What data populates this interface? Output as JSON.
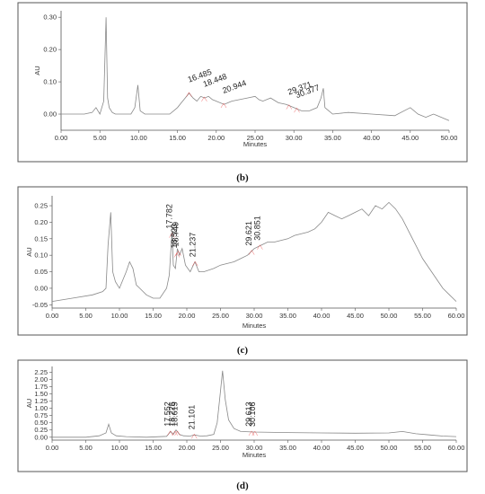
{
  "chart_data": [
    {
      "type": "line",
      "panel_label": "(b)",
      "xlabel": "Minutes",
      "ylabel": "AU",
      "xlim": [
        0,
        50
      ],
      "ylim": [
        -0.05,
        0.32
      ],
      "x_ticks": [
        "0.00",
        "5.00",
        "10.00",
        "15.00",
        "20.00",
        "25.00",
        "30.00",
        "35.00",
        "40.00",
        "45.00",
        "50.00"
      ],
      "y_ticks": [
        "0.00",
        "0.10",
        "0.20",
        "0.30"
      ],
      "series": [
        {
          "x": [
            0,
            3,
            4,
            4.5,
            5,
            5.5,
            5.8,
            6,
            6.2,
            6.6,
            7,
            8,
            9,
            9.5,
            9.9,
            10.2,
            10.8,
            12,
            14,
            15,
            15.5,
            16,
            16.5,
            17,
            17.5,
            18,
            18.5,
            19,
            19.5,
            20,
            21,
            22,
            23,
            24,
            25,
            25.5,
            26,
            27,
            28,
            29,
            29.5,
            30,
            30.5,
            31,
            32,
            33,
            33.5,
            33.8,
            34,
            34.5,
            35,
            37,
            40,
            43,
            45,
            46,
            47,
            48,
            49,
            50
          ],
          "y": [
            0.0,
            0.0,
            0.005,
            0.02,
            0.0,
            0.04,
            0.3,
            0.05,
            0.02,
            0.005,
            0.0,
            0.0,
            0.0,
            0.02,
            0.09,
            0.01,
            0.0,
            0.0,
            0.0,
            0.02,
            0.035,
            0.05,
            0.065,
            0.05,
            0.04,
            0.055,
            0.05,
            0.055,
            0.045,
            0.04,
            0.03,
            0.04,
            0.045,
            0.05,
            0.055,
            0.045,
            0.04,
            0.05,
            0.035,
            0.03,
            0.025,
            0.02,
            0.015,
            0.01,
            0.01,
            0.02,
            0.05,
            0.08,
            0.02,
            0.01,
            0.0,
            0.005,
            0.0,
            -0.005,
            0.02,
            0.0,
            -0.01,
            0.0,
            -0.01,
            -0.02
          ]
        }
      ],
      "peak_labels": [
        {
          "x": 16.485,
          "text": "16.485"
        },
        {
          "x": 18.448,
          "text": "18.448"
        },
        {
          "x": 20.944,
          "text": "20.944"
        },
        {
          "x": 29.371,
          "text": "29.371"
        },
        {
          "x": 30.377,
          "text": "30.377"
        }
      ]
    },
    {
      "type": "line",
      "panel_label": "(c)",
      "xlabel": "Minutes",
      "ylabel": "AU",
      "xlim": [
        0,
        60
      ],
      "ylim": [
        -0.06,
        0.28
      ],
      "x_ticks": [
        "0.00",
        "5.00",
        "10.00",
        "15.00",
        "20.00",
        "25.00",
        "30.00",
        "35.00",
        "40.00",
        "45.00",
        "50.00",
        "55.00",
        "60.00"
      ],
      "y_ticks": [
        "-0.05",
        "0.00",
        "0.05",
        "0.10",
        "0.15",
        "0.20",
        "0.25"
      ],
      "series": [
        {
          "x": [
            0,
            3,
            6,
            7.5,
            8,
            8.3,
            8.7,
            9,
            9.4,
            10,
            11,
            11.5,
            12,
            12.5,
            13,
            14,
            15,
            16,
            17,
            17.4,
            17.8,
            18,
            18.3,
            18.6,
            18.9,
            19.3,
            19.8,
            20.5,
            21.2,
            21.8,
            22.5,
            24,
            25,
            26,
            27,
            28,
            29,
            30,
            31,
            32,
            33,
            34,
            35,
            36,
            38,
            39,
            40,
            41,
            42,
            43,
            44,
            45,
            46,
            47,
            48,
            49,
            50,
            51,
            52,
            53,
            54,
            55,
            56,
            57,
            58,
            59,
            60
          ],
          "y": [
            -0.04,
            -0.03,
            -0.02,
            -0.01,
            0.0,
            0.13,
            0.23,
            0.05,
            0.02,
            0.0,
            0.05,
            0.08,
            0.06,
            0.01,
            0.0,
            -0.02,
            -0.03,
            -0.03,
            0.0,
            0.04,
            0.17,
            0.07,
            0.06,
            0.12,
            0.1,
            0.12,
            0.07,
            0.05,
            0.08,
            0.05,
            0.05,
            0.06,
            0.07,
            0.075,
            0.08,
            0.09,
            0.1,
            0.12,
            0.13,
            0.14,
            0.14,
            0.145,
            0.15,
            0.16,
            0.17,
            0.18,
            0.2,
            0.23,
            0.22,
            0.21,
            0.22,
            0.23,
            0.24,
            0.22,
            0.25,
            0.24,
            0.26,
            0.24,
            0.21,
            0.17,
            0.13,
            0.09,
            0.06,
            0.03,
            0.0,
            -0.02,
            -0.04
          ]
        }
      ],
      "peak_labels": [
        {
          "x": 17.782,
          "text": "17.782"
        },
        {
          "x": 18.523,
          "text": "18.523"
        },
        {
          "x": 18.749,
          "text": "18.749"
        },
        {
          "x": 21.237,
          "text": "21.237"
        },
        {
          "x": 29.621,
          "text": "29.621"
        },
        {
          "x": 30.851,
          "text": "30.851"
        }
      ]
    },
    {
      "type": "line",
      "panel_label": "(d)",
      "xlabel": "Minutes",
      "ylabel": "AU",
      "xlim": [
        0,
        60
      ],
      "ylim": [
        -0.1,
        2.45
      ],
      "x_ticks": [
        "0.00",
        "5.00",
        "10.00",
        "15.00",
        "20.00",
        "25.00",
        "30.00",
        "35.00",
        "40.00",
        "45.00",
        "50.00",
        "55.00",
        "60.00"
      ],
      "y_ticks": [
        "0.00",
        "0.25",
        "0.50",
        "0.75",
        "1.00",
        "1.25",
        "1.50",
        "1.75",
        "2.00",
        "2.25"
      ],
      "series": [
        {
          "x": [
            0,
            5,
            7,
            8,
            8.4,
            8.8,
            9.5,
            11,
            14,
            17,
            17.6,
            18,
            18.4,
            18.9,
            19.5,
            20.5,
            21.1,
            22,
            23,
            24,
            24.5,
            25,
            25.3,
            25.7,
            26.2,
            27,
            28,
            30,
            35,
            40,
            45,
            50,
            52,
            54,
            56,
            58,
            60
          ],
          "y": [
            0.0,
            0.0,
            0.05,
            0.15,
            0.45,
            0.15,
            0.05,
            0.02,
            0.0,
            0.03,
            0.2,
            0.1,
            0.25,
            0.1,
            0.05,
            0.04,
            0.08,
            0.04,
            0.05,
            0.1,
            0.5,
            1.6,
            2.3,
            1.3,
            0.6,
            0.3,
            0.2,
            0.18,
            0.16,
            0.15,
            0.14,
            0.15,
            0.2,
            0.12,
            0.08,
            0.04,
            0.02
          ]
        }
      ],
      "peak_labels": [
        {
          "x": 17.552,
          "text": "17.552"
        },
        {
          "x": 18.226,
          "text": "18.226"
        },
        {
          "x": 18.619,
          "text": "18.619"
        },
        {
          "x": 21.101,
          "text": "21.101"
        },
        {
          "x": 29.613,
          "text": "29.613"
        },
        {
          "x": 30.106,
          "text": "30.106"
        }
      ]
    }
  ]
}
